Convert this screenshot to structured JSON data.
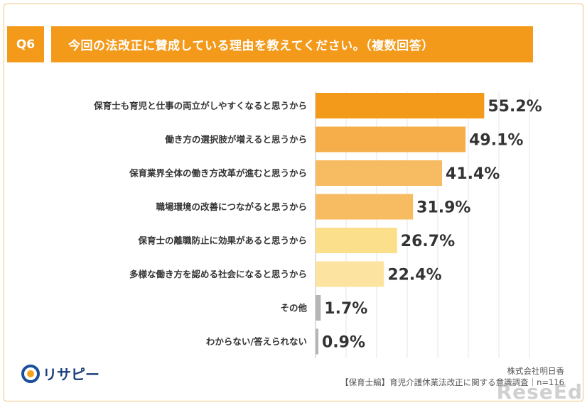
{
  "question": {
    "badge": "Q6",
    "title": "今回の法改正に賛成している理由を教えてください。（複数回答）"
  },
  "chart_data": {
    "type": "bar",
    "orientation": "horizontal",
    "categories": [
      "保育士も育児と仕事の両立がしやすくなると思うから",
      "働き方の選択肢が増えると思うから",
      "保育業界全体の働き方改革が進むと思うから",
      "職場環境の改善につながると思うから",
      "保育士の離職防止に効果があると思うから",
      "多様な働き方を認める社会になると思うから",
      "その他",
      "わからない/答えられない"
    ],
    "values": [
      55.2,
      49.1,
      41.4,
      31.9,
      26.7,
      22.4,
      1.7,
      0.9
    ],
    "value_labels": [
      "55.2%",
      "49.1%",
      "41.4%",
      "31.9%",
      "26.7%",
      "22.4%",
      "1.7%",
      "0.9%"
    ],
    "colors": [
      "#f39a1b",
      "#f5ae4a",
      "#f7bb62",
      "#f7bb62",
      "#fcdf8b",
      "#fde3a0",
      "#b5b5b5",
      "#b5b5b5"
    ],
    "xlim": [
      0,
      70
    ],
    "grid": true
  },
  "footer": {
    "logo_text": "リサピー",
    "source_line1": "株式会社明日香",
    "source_line2": "【保育士編】育児介護休業法改正に関する意識調査｜n=116",
    "watermark": "ReseEd"
  }
}
